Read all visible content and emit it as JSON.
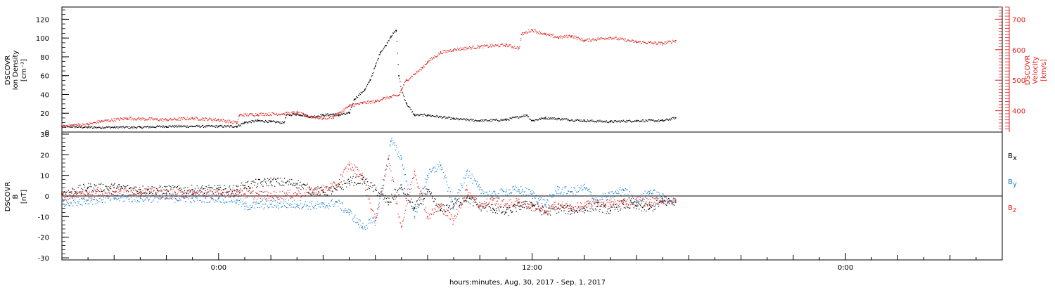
{
  "chart_data": [
    {
      "type": "scatter",
      "panel": "top",
      "x_unit": "hours since Aug. 30, 2017 00:00",
      "xlim": [
        -6,
        30
      ],
      "ylabel_left": [
        "DSCOVR",
        "Ion Density",
        "[cm⁻³]"
      ],
      "ylim_left": [
        0,
        133
      ],
      "yticks_left": [
        0,
        20,
        40,
        60,
        80,
        100,
        120
      ],
      "ylabel_right": [
        "DSCOVR",
        "Velocity",
        "[km/s]"
      ],
      "ylim_right": [
        330,
        740
      ],
      "yticks_right": [
        400,
        500,
        600,
        700
      ],
      "grid": false,
      "series": [
        {
          "name": "",
          "axis": "left",
          "color": "#000000",
          "x": [
            -6.0,
            -5.0,
            -4.0,
            -3.0,
            -2.0,
            -1.0,
            0.0,
            0.7,
            1.0,
            1.5,
            2.0,
            2.5,
            2.6,
            3.0,
            3.4,
            3.5,
            4.0,
            4.4,
            4.6,
            5.0,
            5.2,
            5.6,
            5.8,
            6.0,
            6.2,
            6.4,
            6.6,
            6.8,
            6.9,
            7.0,
            7.2,
            7.5,
            8.0,
            9.0,
            10.0,
            11.0,
            11.8,
            12.0,
            12.5,
            13.0,
            14.0,
            15.0,
            16.0,
            17.0,
            17.5
          ],
          "y": [
            6,
            5,
            5,
            5,
            6,
            6,
            6,
            6,
            10,
            12,
            11,
            10,
            18,
            19,
            17,
            16,
            18,
            19,
            18,
            20,
            35,
            45,
            55,
            70,
            85,
            92,
            102,
            108,
            60,
            45,
            30,
            18,
            18,
            14,
            12,
            13,
            18,
            12,
            15,
            14,
            12,
            11,
            12,
            12,
            15
          ]
        },
        {
          "name": "",
          "axis": "right",
          "color": "#e0201c",
          "x": [
            -6.0,
            -5.0,
            -4.5,
            -3.5,
            -2.0,
            -1.0,
            0.0,
            0.7,
            0.8,
            1.5,
            2.5,
            3.0,
            3.5,
            4.0,
            4.4,
            4.6,
            5.0,
            5.5,
            6.0,
            6.3,
            6.6,
            6.9,
            7.0,
            7.2,
            7.5,
            7.8,
            8.0,
            8.5,
            9.0,
            10.0,
            11.0,
            11.5,
            11.6,
            12.0,
            12.5,
            13.0,
            13.5,
            14.0,
            15.0,
            16.0,
            17.0,
            17.5
          ],
          "y": [
            350,
            355,
            365,
            375,
            370,
            375,
            370,
            360,
            385,
            388,
            390,
            393,
            380,
            375,
            380,
            390,
            415,
            425,
            430,
            440,
            445,
            450,
            470,
            500,
            520,
            540,
            560,
            590,
            600,
            610,
            615,
            605,
            650,
            665,
            650,
            640,
            645,
            630,
            640,
            625,
            620,
            630
          ]
        }
      ]
    },
    {
      "type": "scatter",
      "panel": "bottom",
      "x_unit": "hours since Aug. 30, 2017 00:00",
      "xlim": [
        -6,
        30
      ],
      "xticks": [
        "0:00",
        "12:00",
        "0:00"
      ],
      "xtick_values": [
        0,
        12,
        24
      ],
      "xlabel": "hours:minutes, Aug. 30, 2017 - Sep.  1, 2017",
      "ylabel_left": [
        "DSCOVR",
        "B",
        "[nT]"
      ],
      "ylim": [
        -31,
        31
      ],
      "yticks": [
        -30,
        -20,
        -10,
        0,
        10,
        20,
        30
      ],
      "zero_line": true,
      "legend_placement": "right",
      "legend": [
        {
          "base": "B",
          "sub": "x",
          "color": "#000000"
        },
        {
          "base": "B",
          "sub": "y",
          "color": "#1a7fd0"
        },
        {
          "base": "B",
          "sub": "z",
          "color": "#e0201c"
        }
      ],
      "series": [
        {
          "name": "Bx",
          "color": "#000000",
          "x": [
            -6.0,
            -5.0,
            -4.0,
            -3.0,
            -2.0,
            -1.0,
            0.0,
            0.7,
            1.0,
            2.0,
            3.0,
            3.5,
            4.0,
            4.5,
            5.0,
            5.5,
            6.0,
            6.5,
            7.0,
            7.5,
            8.0,
            8.5,
            9.0,
            9.5,
            10.0,
            10.5,
            11.0,
            11.5,
            12.0,
            12.5,
            13.0,
            13.5,
            14.0,
            14.5,
            15.0,
            15.5,
            16.0,
            16.5,
            17.0,
            17.5
          ],
          "y": [
            1,
            4,
            4,
            3,
            3,
            3,
            3,
            3,
            5,
            7,
            6,
            3,
            2,
            3,
            7,
            8,
            3,
            -3,
            4,
            -6,
            2,
            -7,
            -4,
            -1,
            -5,
            -6,
            -8,
            -5,
            -4,
            -8,
            -6,
            -7,
            -6,
            -5,
            -7,
            -4,
            -5,
            -6,
            -3,
            -3
          ]
        },
        {
          "name": "By",
          "color": "#1a7fd0",
          "x": [
            -6.0,
            -5.0,
            -4.0,
            -3.0,
            -2.0,
            -1.0,
            0.0,
            0.7,
            1.0,
            2.0,
            3.0,
            4.0,
            4.5,
            5.0,
            5.5,
            6.0,
            6.3,
            6.6,
            7.0,
            7.5,
            8.0,
            8.5,
            9.0,
            9.5,
            10.0,
            10.5,
            11.0,
            11.5,
            12.0,
            12.5,
            13.0,
            13.5,
            14.0,
            14.5,
            15.0,
            15.5,
            16.0,
            16.5,
            17.0,
            17.5
          ],
          "y": [
            -3,
            -2,
            -1,
            -1,
            -1,
            -1,
            -1,
            -2,
            -5,
            -4,
            -4,
            -5,
            -3,
            -8,
            -15,
            -12,
            5,
            27,
            18,
            -10,
            10,
            15,
            -5,
            12,
            3,
            0,
            2,
            3,
            1,
            -4,
            3,
            2,
            4,
            -2,
            0,
            3,
            -3,
            2,
            -1,
            -2
          ]
        },
        {
          "name": "Bz",
          "color": "#e0201c",
          "x": [
            -6.0,
            -5.0,
            -4.0,
            -3.0,
            -2.0,
            -1.0,
            0.0,
            0.7,
            1.0,
            2.0,
            3.0,
            4.0,
            4.5,
            5.0,
            5.5,
            6.0,
            6.5,
            7.0,
            7.5,
            8.0,
            8.5,
            9.0,
            9.5,
            10.0,
            10.5,
            11.0,
            11.5,
            12.0,
            12.5,
            13.0,
            13.5,
            14.0,
            14.5,
            15.0,
            15.5,
            16.0,
            16.5,
            17.0,
            17.5
          ],
          "y": [
            0,
            1,
            2,
            2,
            1,
            1,
            1,
            2,
            1,
            0,
            1,
            3,
            5,
            15,
            10,
            -12,
            18,
            -15,
            12,
            -10,
            -5,
            -12,
            3,
            -5,
            -2,
            -4,
            -3,
            -5,
            -8,
            -4,
            -6,
            -5,
            -3,
            -4,
            -3,
            -2,
            -3,
            -2,
            -2
          ]
        }
      ]
    }
  ]
}
